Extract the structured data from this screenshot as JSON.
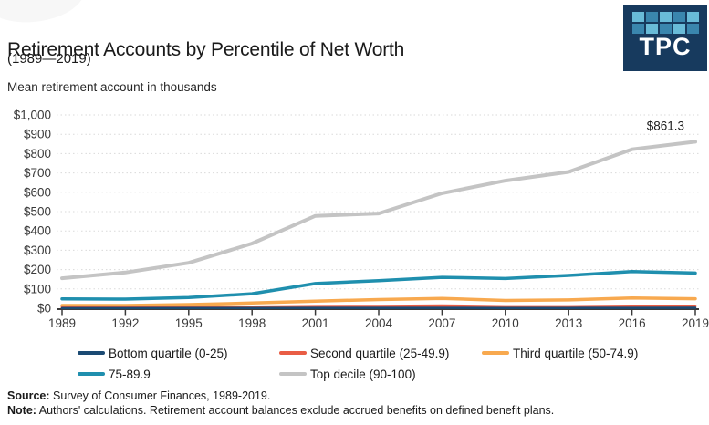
{
  "header": {
    "title": "Retirement Accounts by Percentile of Net Worth",
    "subtitle": "(1989—2019)"
  },
  "logo": {
    "text": "TPC",
    "background": "#173a5e",
    "square_colors": [
      "#69bbd8",
      "#3a86ae",
      "#69bbd8",
      "#3a86ae",
      "#69bbd8",
      "#3a86ae",
      "#69bbd8",
      "#3a86ae",
      "#69bbd8",
      "#3a86ae"
    ]
  },
  "chart": {
    "axis_title": "Mean retirement account in thousands",
    "end_label": "$861.3",
    "y_tick_labels": [
      "$0",
      "$100",
      "$200",
      "$300",
      "$400",
      "$500",
      "$600",
      "$700",
      "$800",
      "$900",
      "$1,000"
    ],
    "x_tick_labels": [
      "1989",
      "1992",
      "1995",
      "1998",
      "2001",
      "2004",
      "2007",
      "2010",
      "2013",
      "2016",
      "2019"
    ]
  },
  "chart_data": {
    "type": "line",
    "title": "Retirement Accounts by Percentile of Net Worth (1989—2019)",
    "ylabel": "Mean retirement account in thousands",
    "x": [
      1989,
      1992,
      1995,
      1998,
      2001,
      2004,
      2007,
      2010,
      2013,
      2016,
      2019
    ],
    "ylim": [
      0,
      1000
    ],
    "grid": true,
    "legend_position": "bottom",
    "annotation": {
      "text": "$861.3",
      "series": "Top decile (90-100)",
      "x": 2019,
      "y": 861.3
    },
    "series": [
      {
        "name": "Bottom quartile (0-25)",
        "color": "#1b4a73",
        "values": [
          0.6,
          0.7,
          0.9,
          1.2,
          1.7,
          1.9,
          2.1,
          1.5,
          1.6,
          2.0,
          2.2
        ]
      },
      {
        "name": "Second quartile (25-49.9)",
        "color": "#e95d45",
        "values": [
          3.5,
          3.5,
          4.5,
          7,
          10,
          11,
          13,
          9,
          9,
          12,
          12
        ]
      },
      {
        "name": "Third quartile (50-74.9)",
        "color": "#f8a94f",
        "values": [
          14,
          14,
          19,
          27,
          37,
          45,
          51,
          40,
          43,
          53,
          49
        ]
      },
      {
        "name": "75-89.9",
        "color": "#1f8fae",
        "values": [
          48,
          47,
          55,
          75,
          128,
          143,
          160,
          154,
          170,
          190,
          182
        ]
      },
      {
        "name": "Top decile (90-100)",
        "color": "#c4c4c4",
        "values": [
          155,
          185,
          235,
          335,
          478,
          490,
          595,
          660,
          705,
          822,
          861.3
        ]
      }
    ]
  },
  "footer": {
    "source_label": "Source:",
    "source_text": " Survey of Consumer Finances, 1989-2019.",
    "note_label": "Note:",
    "note_text": " Authors' calculations. Retirement account balances exclude accrued benefits on defined benefit plans."
  },
  "colors": {
    "axis": "#3a3a3a",
    "grid": "#dadada",
    "tick_label": "#3a3a3a",
    "annotation_text": "#1a1a1a"
  }
}
